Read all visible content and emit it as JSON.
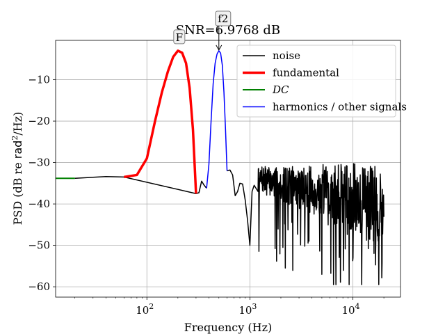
{
  "chart_data": {
    "type": "line",
    "title": "SNR=6.9768 dB",
    "xlabel": "Frequency (Hz)",
    "ylabel": "PSD (dB re rad²/Hz)",
    "ylabel_parts": {
      "prefix": "PSD (dB re ",
      "unit_base": "rad",
      "unit_sup": "2",
      "suffix": "/Hz)"
    },
    "xscale": "log",
    "xlim": [
      13,
      29000
    ],
    "ylim": [
      -62.5,
      -0.5
    ],
    "grid": true,
    "legend_position": "top-right",
    "x_ticks": [
      {
        "value": 100,
        "base": "10",
        "exp": "2"
      },
      {
        "value": 1000,
        "base": "10",
        "exp": "3"
      },
      {
        "value": 10000,
        "base": "10",
        "exp": "4"
      }
    ],
    "y_ticks": [
      {
        "value": -10,
        "label": "−10"
      },
      {
        "value": -20,
        "label": "−20"
      },
      {
        "value": -30,
        "label": "−30"
      },
      {
        "value": -40,
        "label": "−40"
      },
      {
        "value": -50,
        "label": "−50"
      },
      {
        "value": -60,
        "label": "−60"
      }
    ],
    "annotations": [
      {
        "label": "F",
        "x": 200,
        "y": -3.0,
        "style": "box"
      },
      {
        "label": "f2",
        "x": 500,
        "y": -3.0,
        "style": "arrow"
      }
    ],
    "series": [
      {
        "name": "noise",
        "legend_label": "noise",
        "color": "#000000",
        "width": 1.5,
        "italic": false,
        "noise": false,
        "points": [
          [
            20,
            -33.8
          ],
          [
            40,
            -33.4
          ],
          [
            60,
            -33.5
          ],
          [
            300,
            -37.5
          ],
          [
            320,
            -37.3
          ],
          [
            340,
            -34.5
          ],
          [
            360,
            -35.5
          ],
          [
            380,
            -36.2
          ]
        ]
      },
      {
        "name": "noise-tail",
        "legend_label": "",
        "color": "#000000",
        "width": 1.5,
        "italic": false,
        "noise": true,
        "noise_seed": 7,
        "noise_fmin": 640,
        "noise_fmax": 20000,
        "noise_points": 420,
        "points": [
          [
            600,
            -32.0
          ],
          [
            640,
            -31.8
          ],
          [
            680,
            -33.0
          ],
          [
            720,
            -38.0
          ],
          [
            760,
            -37.0
          ],
          [
            800,
            -35.0
          ],
          [
            850,
            -35.2
          ],
          [
            900,
            -39.0
          ],
          [
            950,
            -44.0
          ],
          [
            1000,
            -50.0
          ],
          [
            1050,
            -37.0
          ],
          [
            1100,
            -35.5
          ],
          [
            1200,
            -37.0
          ]
        ]
      },
      {
        "name": "fundamental",
        "legend_label": "fundamental",
        "color": "#ff0000",
        "width": 3.5,
        "italic": false,
        "noise": false,
        "points": [
          [
            60,
            -33.5
          ],
          [
            80,
            -33.0
          ],
          [
            100,
            -29.0
          ],
          [
            120,
            -20.0
          ],
          [
            140,
            -13.0
          ],
          [
            160,
            -8.0
          ],
          [
            180,
            -4.5
          ],
          [
            200,
            -3.0
          ],
          [
            220,
            -3.5
          ],
          [
            240,
            -6.0
          ],
          [
            260,
            -12.0
          ],
          [
            280,
            -22.0
          ],
          [
            300,
            -37.5
          ]
        ]
      },
      {
        "name": "DC",
        "legend_label": "DC",
        "color": "#008000",
        "width": 2,
        "italic": true,
        "noise": false,
        "points": [
          [
            13,
            -33.8
          ],
          [
            20,
            -33.8
          ]
        ]
      },
      {
        "name": "harmonics",
        "legend_label": "harmonics / other signals",
        "color": "#0000ff",
        "width": 1.5,
        "italic": false,
        "noise": false,
        "points": [
          [
            380,
            -36.2
          ],
          [
            400,
            -30.5
          ],
          [
            420,
            -20.0
          ],
          [
            440,
            -11.0
          ],
          [
            460,
            -6.0
          ],
          [
            480,
            -3.8
          ],
          [
            500,
            -3.0
          ],
          [
            520,
            -3.6
          ],
          [
            540,
            -6.5
          ],
          [
            560,
            -13.0
          ],
          [
            580,
            -22.0
          ],
          [
            600,
            -32.0
          ]
        ]
      }
    ]
  }
}
